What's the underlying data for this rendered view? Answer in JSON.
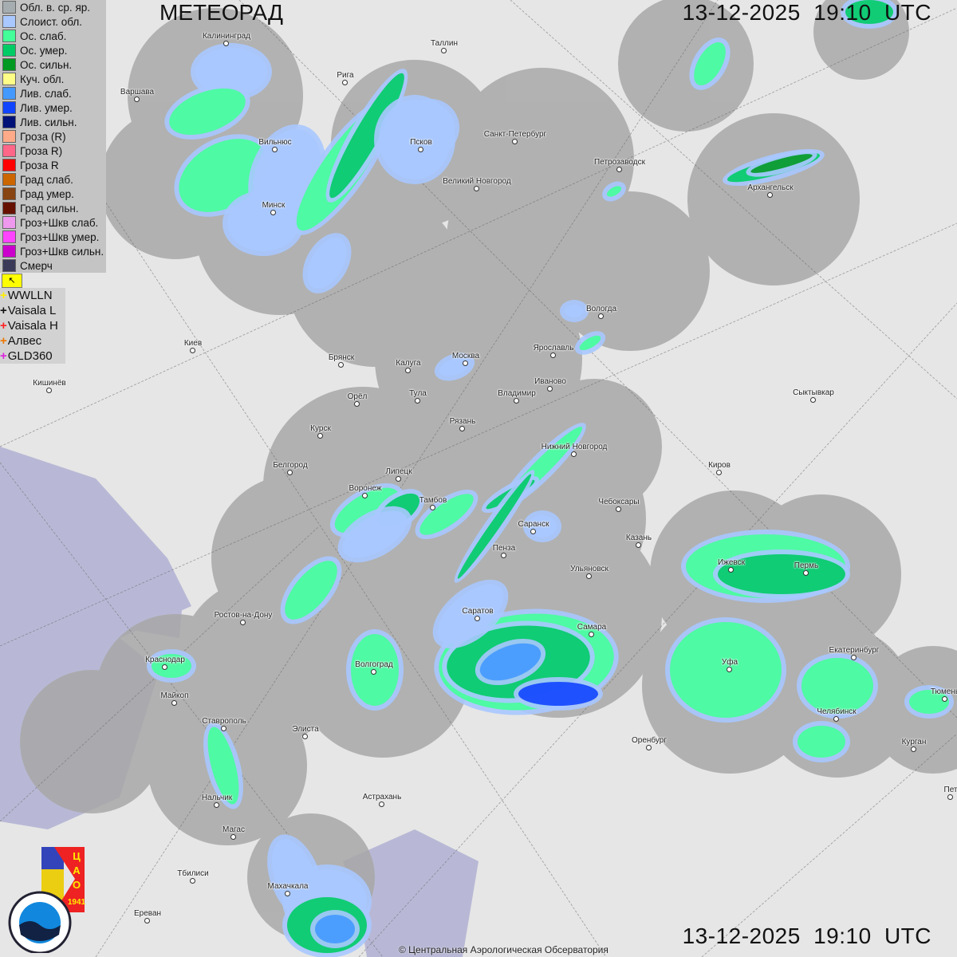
{
  "header": {
    "title": "МЕТЕОРАД",
    "timestamp": "13-12-2025  19:10 UTC"
  },
  "footer": {
    "timestamp": "13-12-2025  19:10 UTC",
    "copyright": "© Центральная Аэрологическая Обсерватория"
  },
  "legend": {
    "items": [
      {
        "label": "Обл. в. ср. яр.",
        "color": "#a6adb0"
      },
      {
        "label": "Слоист. обл.",
        "color": "#a8c8ff"
      },
      {
        "label": "Ос. слаб.",
        "color": "#44ff99"
      },
      {
        "label": "Ос. умер.",
        "color": "#00cc66"
      },
      {
        "label": "Ос. сильн.",
        "color": "#009922"
      },
      {
        "label": "Куч. обл.",
        "color": "#ffff88"
      },
      {
        "label": "Лив. слаб.",
        "color": "#4499ff"
      },
      {
        "label": "Лив. умер.",
        "color": "#1144ff"
      },
      {
        "label": "Лив. сильн.",
        "color": "#001177"
      },
      {
        "label": "Гроза (R)",
        "color": "#ffaa88"
      },
      {
        "label": "Гроза R)",
        "color": "#ff6688"
      },
      {
        "label": "Гроза R",
        "color": "#ff0000"
      },
      {
        "label": "Град слаб.",
        "color": "#cc6600"
      },
      {
        "label": "Град умер.",
        "color": "#884411"
      },
      {
        "label": "Град сильн.",
        "color": "#661100"
      },
      {
        "label": "Гроз+Шкв слаб.",
        "color": "#ee99ee"
      },
      {
        "label": "Гроз+Шкв умер.",
        "color": "#ff44ff"
      },
      {
        "label": "Гроз+Шкв сильн.",
        "color": "#cc00cc"
      },
      {
        "label": "Смерч",
        "color": "#3a3a58"
      }
    ],
    "flag_icon": "arrow-up-left-icon"
  },
  "lightning": [
    {
      "label": "WWLLN",
      "color": "#ffee00"
    },
    {
      "label": "Vaisala L",
      "color": "#111111"
    },
    {
      "label": "Vaisala H",
      "color": "#ff2222"
    },
    {
      "label": "Алвес",
      "color": "#ee7700"
    },
    {
      "label": "GLD360",
      "color": "#dd22dd"
    }
  ],
  "logos": {
    "cao": "ЦАО 1941",
    "roshydromet": "РОСГИДРОМЕТ ROSHYDROMET"
  },
  "cities": [
    "Калининград",
    "Рига",
    "Таллин",
    "Варшава",
    "Вильнюс",
    "Псков",
    "Санкт-Петербург",
    "Петрозаводск",
    "Архангельск",
    "Великий Новгород",
    "Минск",
    "Вологда",
    "Киев",
    "Брянск",
    "Калуга",
    "Москва",
    "Ярославль",
    "Иваново",
    "Владимир",
    "Тула",
    "Орёл",
    "Кишинёв",
    "Сыктывкар",
    "Рязань",
    "Курск",
    "Нижний Новгород",
    "Белгород",
    "Липецк",
    "Киров",
    "Воронеж",
    "Тамбов",
    "Чебоксары",
    "Саранск",
    "Казань",
    "Пенза",
    "Ижевск",
    "Пермь",
    "Ульяновск",
    "Ростов-на-Дону",
    "Саратов",
    "Самара",
    "Краснодар",
    "Волгоград",
    "Уфа",
    "Екатеринбург",
    "Майкоп",
    "Тюмень",
    "Челябинск",
    "Ставрополь",
    "Элиста",
    "Оренбург",
    "Курган",
    "Нальчик",
    "Астрахань",
    "Пет",
    "Магас",
    "Тбилиси",
    "Махачкала",
    "Ереван"
  ],
  "colors": {
    "land": "#e6e6e6",
    "water": "#b8b8d6",
    "radar_coverage": "#a8a8a8"
  }
}
